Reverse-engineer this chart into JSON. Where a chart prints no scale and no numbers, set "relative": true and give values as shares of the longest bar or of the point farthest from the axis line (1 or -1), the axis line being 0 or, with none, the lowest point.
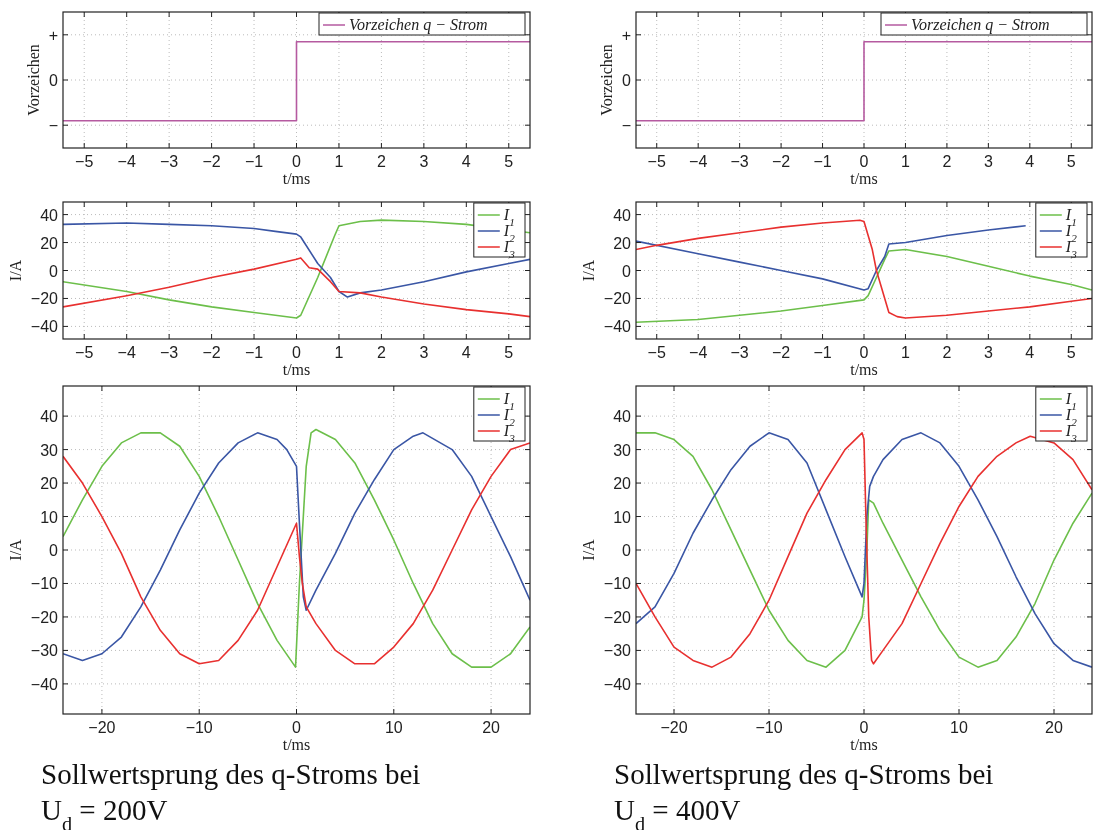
{
  "chart_data": [
    {
      "type": "line",
      "relative": true,
      "ylabel": "Vorzeichen",
      "xlabel": "t/ms",
      "xlim": [
        -5.5,
        5.5
      ],
      "xticks": [
        -5,
        -4,
        -3,
        -2,
        -1,
        0,
        1,
        2,
        3,
        4,
        5
      ],
      "grid": true,
      "legend": "top right",
      "annotations": [
        "−",
        "0",
        "+"
      ],
      "series": [
        {
          "name": "Vorzeichen q − Strom",
          "color": "#b55aa0",
          "x": [
            -5.5,
            0,
            0,
            5.5
          ],
          "values": [
            -1,
            -1,
            0.94,
            0.94
          ]
        }
      ]
    },
    {
      "type": "line",
      "relative": true,
      "ylabel": "Vorzeichen",
      "xlabel": "t/ms",
      "xlim": [
        -5.5,
        5.5
      ],
      "xticks": [
        -5,
        -4,
        -3,
        -2,
        -1,
        0,
        1,
        2,
        3,
        4,
        5
      ],
      "grid": true,
      "legend": "top right",
      "annotations": [
        "−",
        "0",
        "+"
      ],
      "series": [
        {
          "name": "Vorzeichen q − Strom",
          "color": "#b55aa0",
          "x": [
            -5.5,
            0,
            0,
            5.5
          ],
          "values": [
            -1,
            -1,
            0.94,
            0.94
          ]
        }
      ]
    },
    {
      "type": "line",
      "ylabel": "I/A",
      "xlabel": "t/ms",
      "xlim": [
        -5.5,
        5.5
      ],
      "xticks": [
        -5,
        -4,
        -3,
        -2,
        -1,
        0,
        1,
        2,
        3,
        4,
        5
      ],
      "ylim": [
        -49,
        49
      ],
      "yticks": [
        -40,
        -20,
        0,
        20,
        40
      ],
      "grid": true,
      "legend": "top right",
      "series": [
        {
          "name": "I$_{1}$",
          "color": "#6cbf4a",
          "x": [
            -5.5,
            -4,
            -3,
            -2,
            -1,
            0,
            0.1,
            0.5,
            0.9,
            1,
            1.5,
            2,
            3,
            4,
            5.5
          ],
          "values": [
            -8,
            -15,
            -21,
            -26,
            -30,
            -34,
            -32,
            -5,
            25,
            32,
            35,
            36,
            35,
            33,
            27
          ]
        },
        {
          "name": "I$_{2}$",
          "color": "#3a56a5",
          "x": [
            -5.5,
            -4,
            -3,
            -2,
            -1,
            -0.5,
            0,
            0.1,
            0.5,
            0.8,
            1,
            1.2,
            1.5,
            2,
            3,
            4,
            5,
            5.5
          ],
          "values": [
            33,
            34,
            33,
            32,
            30,
            28,
            26,
            24,
            5,
            -5,
            -15,
            -19,
            -16,
            -14,
            -8,
            -1,
            5,
            8
          ]
        },
        {
          "name": "I$_{3}$",
          "color": "#e8302f",
          "x": [
            -5.5,
            -4,
            -3,
            -2,
            -1,
            0,
            0.1,
            0.3,
            0.5,
            0.8,
            1,
            1.5,
            2,
            3,
            4,
            5,
            5.5
          ],
          "values": [
            -26,
            -18,
            -12,
            -5,
            1,
            8,
            9,
            2,
            1,
            -8,
            -15,
            -16,
            -19,
            -24,
            -28,
            -31,
            -33
          ]
        }
      ]
    },
    {
      "type": "line",
      "ylabel": "I/A",
      "xlabel": "t/ms",
      "xlim": [
        -5.5,
        5.5
      ],
      "xticks": [
        -5,
        -4,
        -3,
        -2,
        -1,
        0,
        1,
        2,
        3,
        4,
        5
      ],
      "ylim": [
        -49,
        49
      ],
      "yticks": [
        -40,
        -20,
        0,
        20,
        40
      ],
      "grid": true,
      "legend": "top right",
      "series": [
        {
          "name": "I$_{1}$",
          "color": "#6cbf4a",
          "x": [
            -5.5,
            -4,
            -3,
            -2,
            -1,
            0,
            0.1,
            0.3,
            0.5,
            0.6,
            1,
            2,
            3,
            4,
            5,
            5.5
          ],
          "values": [
            -37,
            -35,
            -32,
            -29,
            -25,
            -21,
            -18,
            -5,
            8,
            14,
            15,
            10,
            3,
            -4,
            -10,
            -14
          ]
        },
        {
          "name": "I$_{2}$",
          "color": "#3a56a5",
          "x": [
            -5.5,
            -4,
            -3,
            -2,
            -1,
            0,
            0.1,
            0.3,
            0.5,
            0.6,
            1,
            2,
            3,
            3.9
          ],
          "values": [
            21,
            12,
            6,
            0,
            -6,
            -14,
            -13,
            0,
            10,
            19,
            20,
            25,
            29,
            32
          ]
        },
        {
          "name": "I$_{3}$",
          "color": "#e8302f",
          "x": [
            -5.5,
            -5,
            -4,
            -3,
            -2,
            -1,
            -0.1,
            0,
            0.2,
            0.3,
            0.4,
            0.6,
            0.8,
            1,
            2,
            3,
            4,
            5,
            5.5
          ],
          "values": [
            15,
            18,
            23,
            27,
            31,
            34,
            36,
            35,
            15,
            0,
            -10,
            -30,
            -33,
            -34,
            -32,
            -29,
            -26,
            -22,
            -20
          ]
        }
      ]
    },
    {
      "type": "line",
      "ylabel": "I/A",
      "xlabel": "t/ms",
      "xlim": [
        -24,
        24
      ],
      "xticks": [
        -20,
        -10,
        0,
        10,
        20
      ],
      "ylim": [
        -49,
        49
      ],
      "yticks": [
        -40,
        -30,
        -20,
        -10,
        0,
        10,
        20,
        30,
        40
      ],
      "grid": true,
      "legend": "top right",
      "annotations": [
        "Sollwertsprung des q-Stroms bei",
        "U$_{d}$ = 200V"
      ],
      "series": [
        {
          "name": "I$_{1}$",
          "color": "#6cbf4a",
          "x": [
            -24,
            -22,
            -20,
            -18,
            -16,
            -14,
            -12,
            -10,
            -8,
            -6,
            -4,
            -2,
            -0.1,
            0.3,
            1,
            1.5,
            2,
            4,
            6,
            8,
            10,
            12,
            14,
            16,
            18,
            20,
            22,
            24
          ],
          "values": [
            4,
            15,
            25,
            32,
            35,
            35,
            31,
            22,
            10,
            -3,
            -16,
            -27,
            -35,
            -10,
            25,
            35,
            36,
            33,
            26,
            15,
            3,
            -10,
            -22,
            -31,
            -35,
            -35,
            -31,
            -23
          ]
        },
        {
          "name": "I$_{2}$",
          "color": "#3a56a5",
          "x": [
            -24,
            -22,
            -20,
            -18,
            -16,
            -14,
            -12,
            -10,
            -8,
            -6,
            -4,
            -2,
            -1,
            0,
            0.3,
            0.7,
            1,
            2,
            4,
            6,
            8,
            10,
            12,
            13,
            16,
            18,
            20,
            22,
            24
          ],
          "values": [
            -31,
            -33,
            -31,
            -26,
            -17,
            -6,
            6,
            17,
            26,
            32,
            35,
            33,
            30,
            25,
            8,
            -14,
            -18,
            -12,
            -1,
            11,
            21,
            30,
            34,
            35,
            30,
            22,
            10,
            -2,
            -15
          ]
        },
        {
          "name": "I$_{3}$",
          "color": "#e8302f",
          "x": [
            -24,
            -22,
            -20,
            -18,
            -16,
            -14,
            -12,
            -10,
            -8,
            -6,
            -4,
            -2,
            0,
            0.3,
            0.6,
            1,
            2,
            4,
            6,
            8,
            10,
            12,
            14,
            16,
            18,
            20,
            22,
            24
          ],
          "values": [
            28,
            20,
            10,
            -1,
            -14,
            -24,
            -31,
            -34,
            -33,
            -27,
            -18,
            -5,
            8,
            -2,
            -10,
            -17,
            -22,
            -30,
            -34,
            -34,
            -29,
            -22,
            -12,
            0,
            12,
            22,
            30,
            32
          ]
        }
      ]
    },
    {
      "type": "line",
      "ylabel": "I/A",
      "xlabel": "t/ms",
      "xlim": [
        -24,
        24
      ],
      "xticks": [
        -20,
        -10,
        0,
        10,
        20
      ],
      "ylim": [
        -49,
        49
      ],
      "yticks": [
        -40,
        -30,
        -20,
        -10,
        0,
        10,
        20,
        30,
        40
      ],
      "grid": true,
      "legend": "top right",
      "annotations": [
        "Sollwertsprung des q-Stroms bei",
        "U$_{d}$ = 400V"
      ],
      "series": [
        {
          "name": "I$_{1}$",
          "color": "#6cbf4a",
          "x": [
            -24,
            -22,
            -20,
            -18,
            -16,
            -14,
            -12,
            -10,
            -8,
            -6,
            -4,
            -2,
            -0.2,
            0,
            0.3,
            0.5,
            1,
            2,
            4,
            6,
            8,
            10,
            12,
            14,
            16,
            18,
            20,
            22,
            24
          ],
          "values": [
            35,
            35,
            33,
            28,
            18,
            6,
            -6,
            -18,
            -27,
            -33,
            -35,
            -30,
            -20,
            -15,
            0,
            15,
            14,
            8,
            -3,
            -14,
            -24,
            -32,
            -35,
            -33,
            -26,
            -16,
            -3,
            8,
            17
          ]
        },
        {
          "name": "I$_{2}$",
          "color": "#3a56a5",
          "x": [
            -24,
            -22,
            -20,
            -18,
            -16,
            -14,
            -12,
            -10,
            -8,
            -6,
            -4,
            -2,
            -0.2,
            0,
            0.3,
            0.6,
            1,
            2,
            4,
            6,
            8,
            10,
            12,
            14,
            16,
            18,
            20,
            22,
            24
          ],
          "values": [
            -22,
            -17,
            -7,
            5,
            15,
            24,
            31,
            35,
            33,
            26,
            12,
            -2,
            -14,
            -10,
            10,
            19,
            22,
            27,
            33,
            35,
            32,
            25,
            15,
            4,
            -8,
            -19,
            -28,
            -33,
            -35
          ]
        },
        {
          "name": "I$_{3}$",
          "color": "#e8302f",
          "x": [
            -24,
            -22,
            -20,
            -18,
            -16,
            -14,
            -12,
            -10,
            -8,
            -6,
            -4,
            -2,
            -0.2,
            0,
            0.2,
            0.5,
            0.8,
            1,
            2,
            4,
            6,
            8,
            10,
            12,
            14,
            16,
            17.5,
            20,
            22,
            24
          ],
          "values": [
            -10,
            -20,
            -29,
            -33,
            -35,
            -32,
            -25,
            -15,
            -2,
            11,
            21,
            30,
            35,
            33,
            10,
            -20,
            -33,
            -34,
            -30,
            -22,
            -10,
            2,
            13,
            22,
            28,
            32,
            34,
            32,
            27,
            18
          ]
        }
      ]
    }
  ]
}
